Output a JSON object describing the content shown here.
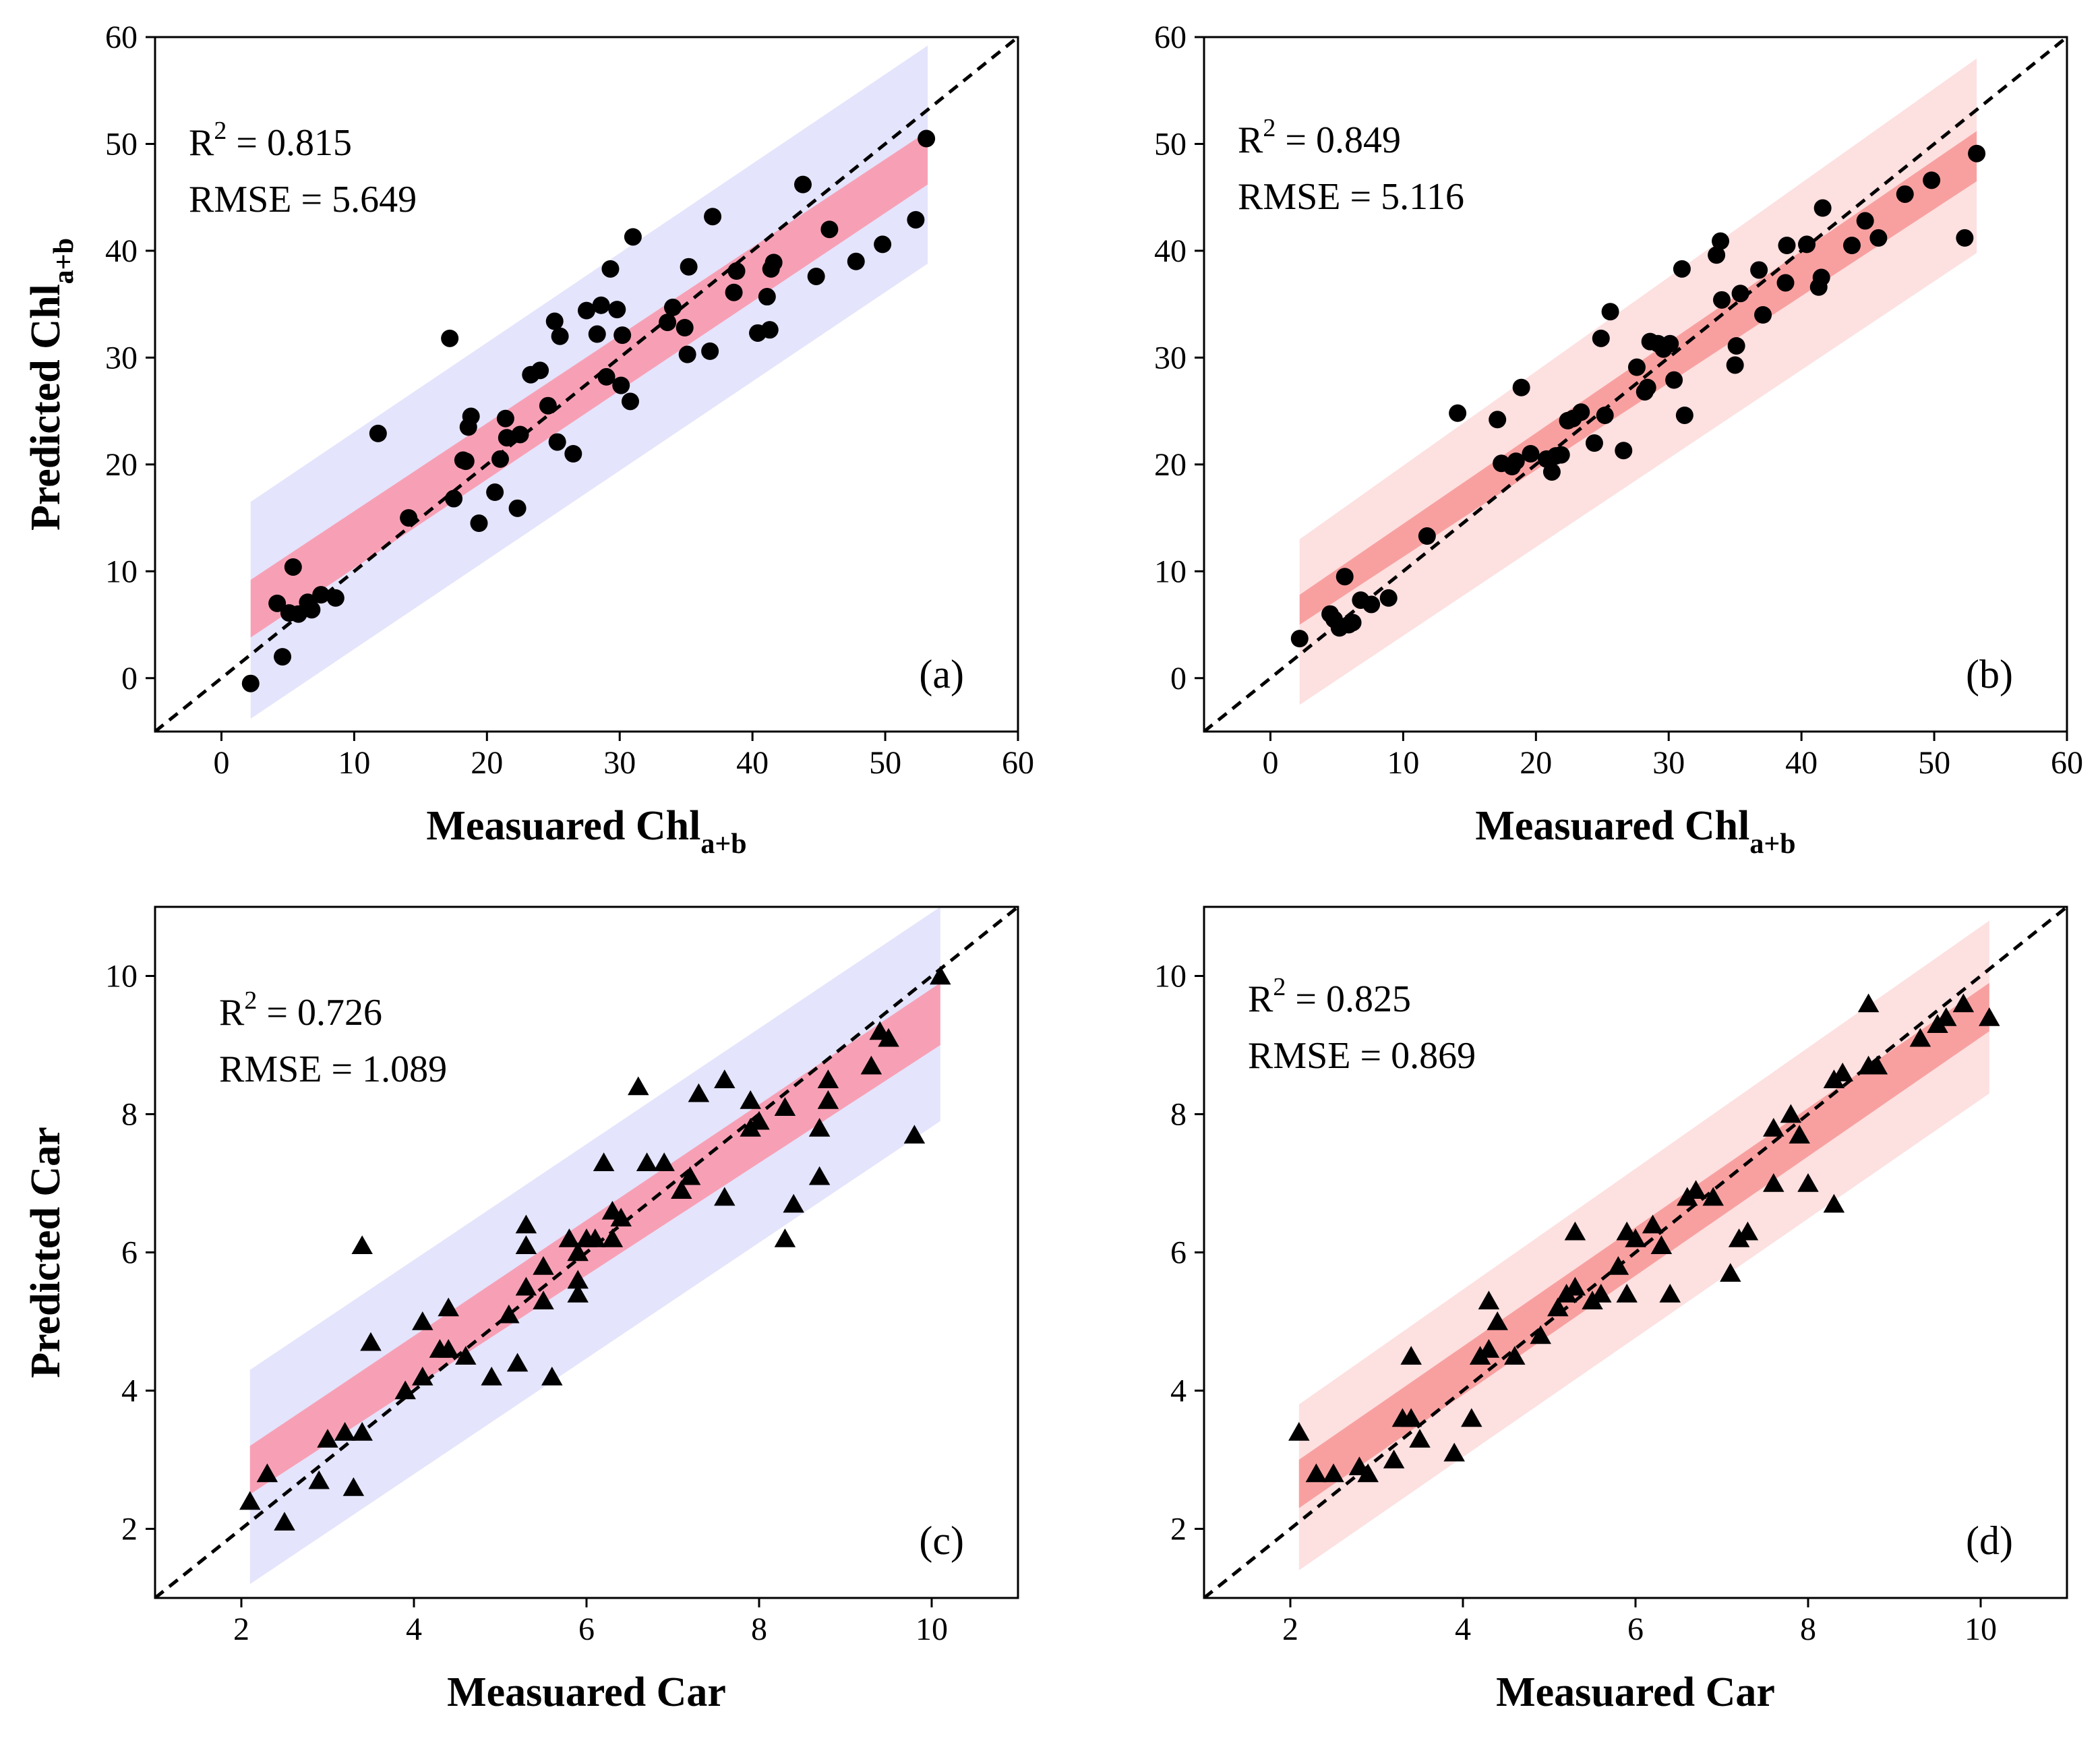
{
  "chart_data": [
    {
      "id": "a",
      "type": "scatter",
      "panel_label": "(a)",
      "xlabel": "Measuared Chl",
      "xlabel_sub": "a+b",
      "ylabel": "Predicted Chl",
      "ylabel_sub": "a+b",
      "xlim": [
        -5,
        60
      ],
      "ylim": [
        -5,
        60
      ],
      "xticks": [
        0,
        10,
        20,
        30,
        40,
        50,
        60
      ],
      "yticks": [
        0,
        10,
        20,
        30,
        40,
        50,
        60
      ],
      "r2_label": "R",
      "r2_sup": "2",
      "r2_value": " = 0.815",
      "rmse_text": "RMSE = 5.649",
      "marker": "circle",
      "colors": {
        "prediction_band": "#e4e4fc",
        "confidence_band": "#f7a0b5",
        "points": "#000000"
      },
      "fit": {
        "x_range": [
          2.2,
          53.2
        ],
        "conf_lower": [
          3.8,
          46.2
        ],
        "conf_upper": [
          9.2,
          51.2
        ],
        "pred_lower": [
          -3.8,
          38.8
        ],
        "pred_upper": [
          16.5,
          59.2
        ]
      },
      "x": [
        2.2,
        4.2,
        4.6,
        5.1,
        5.4,
        5.8,
        6.5,
        6.8,
        7.5,
        8.6,
        11.8,
        14.1,
        17.2,
        17.5,
        18.2,
        18.4,
        18.6,
        18.8,
        19.4,
        20.6,
        21.0,
        21.4,
        21.5,
        22.3,
        22.5,
        23.3,
        24.0,
        24.6,
        25.1,
        25.3,
        25.5,
        26.5,
        27.5,
        28.3,
        28.6,
        29.0,
        29.3,
        29.8,
        30.1,
        30.2,
        30.8,
        31.0,
        33.6,
        34.0,
        34.9,
        35.1,
        35.2,
        36.8,
        37.0,
        38.6,
        38.8,
        40.4,
        41.1,
        41.3,
        41.4,
        41.6,
        43.8,
        44.8,
        45.8,
        47.8,
        49.8,
        52.3,
        53.1
      ],
      "y": [
        -0.5,
        7.0,
        2.0,
        6.1,
        10.4,
        6.0,
        7.1,
        6.4,
        7.8,
        7.5,
        22.9,
        15.0,
        31.8,
        16.8,
        20.4,
        20.3,
        23.5,
        24.5,
        14.5,
        17.4,
        20.5,
        24.3,
        22.5,
        15.9,
        22.8,
        28.4,
        28.8,
        25.5,
        33.4,
        22.1,
        32.0,
        21.0,
        34.4,
        32.2,
        34.9,
        28.2,
        38.3,
        34.5,
        27.4,
        32.1,
        25.9,
        41.3,
        33.3,
        34.7,
        32.8,
        30.3,
        38.5,
        30.6,
        43.2,
        36.1,
        38.1,
        32.3,
        35.7,
        32.6,
        38.3,
        38.9,
        46.2,
        37.6,
        42.0,
        39.0,
        40.6,
        42.9,
        50.5
      ]
    },
    {
      "id": "b",
      "type": "scatter",
      "panel_label": "(b)",
      "xlabel": "Measuared Chl",
      "xlabel_sub": "a+b",
      "ylabel": "Predicted Chl",
      "ylabel_sub": "a+b",
      "xlim": [
        -5,
        60
      ],
      "ylim": [
        -5,
        60
      ],
      "xticks": [
        0,
        10,
        20,
        30,
        40,
        50,
        60
      ],
      "yticks": [
        0,
        10,
        20,
        30,
        40,
        50,
        60
      ],
      "r2_label": "R",
      "r2_sup": "2",
      "r2_value": " = 0.849",
      "rmse_text": "RMSE = 5.116",
      "marker": "circle",
      "colors": {
        "prediction_band": "#fde0e0",
        "confidence_band": "#f8a0a0",
        "points": "#000000"
      },
      "fit": {
        "x_range": [
          2.2,
          53.2
        ],
        "conf_lower": [
          5.0,
          46.5
        ],
        "conf_upper": [
          7.8,
          51.2
        ],
        "pred_lower": [
          -2.5,
          39.8
        ],
        "pred_upper": [
          13.0,
          58.0
        ]
      },
      "x": [
        2.2,
        4.5,
        4.8,
        5.2,
        5.6,
        5.9,
        6.2,
        6.8,
        7.6,
        8.9,
        11.8,
        14.1,
        17.1,
        17.4,
        18.2,
        18.5,
        18.9,
        19.6,
        20.8,
        21.2,
        21.5,
        21.9,
        22.4,
        22.8,
        23.4,
        24.4,
        24.9,
        25.2,
        25.6,
        26.6,
        27.6,
        28.2,
        28.4,
        28.6,
        29.2,
        29.6,
        30.1,
        30.4,
        31.0,
        31.2,
        33.6,
        33.9,
        34.0,
        35.0,
        35.1,
        35.4,
        36.8,
        37.1,
        38.8,
        38.9,
        40.4,
        41.3,
        41.5,
        41.6,
        43.8,
        44.8,
        45.8,
        47.8,
        49.8,
        52.3,
        53.2
      ],
      "y": [
        3.7,
        6.0,
        5.5,
        4.7,
        9.5,
        5.0,
        5.2,
        7.3,
        6.9,
        7.5,
        13.3,
        24.8,
        24.2,
        20.1,
        19.8,
        20.3,
        27.2,
        21.0,
        20.5,
        19.3,
        20.8,
        20.9,
        24.1,
        24.3,
        24.9,
        22.0,
        31.8,
        24.6,
        34.3,
        21.3,
        29.1,
        26.8,
        27.2,
        31.5,
        31.3,
        30.8,
        31.3,
        27.9,
        38.3,
        24.6,
        39.6,
        40.9,
        35.4,
        29.3,
        31.1,
        36.0,
        38.2,
        34.0,
        37.0,
        40.5,
        40.6,
        36.6,
        37.5,
        44.0,
        40.5,
        42.8,
        41.2,
        45.3,
        46.6,
        41.2,
        49.1
      ]
    },
    {
      "id": "c",
      "type": "scatter",
      "panel_label": "(c)",
      "xlabel": "Measuared Car",
      "xlabel_sub": "",
      "ylabel": "Predicted Car",
      "ylabel_sub": "",
      "xlim": [
        1,
        11
      ],
      "ylim": [
        1,
        11
      ],
      "xticks": [
        2,
        4,
        6,
        8,
        10
      ],
      "yticks": [
        2,
        4,
        6,
        8,
        10
      ],
      "r2_label": "R",
      "r2_sup": "2",
      "r2_value": " = 0.726",
      "rmse_text": "RMSE = 1.089",
      "marker": "triangle",
      "colors": {
        "prediction_band": "#e4e4fc",
        "confidence_band": "#f7a0b5",
        "points": "#000000"
      },
      "fit": {
        "x_range": [
          2.1,
          10.1
        ],
        "conf_lower": [
          2.5,
          9.0
        ],
        "conf_upper": [
          3.2,
          9.9
        ],
        "pred_lower": [
          1.2,
          7.9
        ],
        "pred_upper": [
          4.3,
          11.0
        ]
      },
      "x": [
        2.1,
        2.3,
        2.5,
        2.9,
        3.0,
        3.2,
        3.3,
        3.4,
        3.4,
        3.5,
        3.9,
        4.1,
        4.1,
        4.3,
        4.4,
        4.4,
        4.6,
        4.9,
        5.1,
        5.2,
        5.3,
        5.3,
        5.3,
        5.5,
        5.5,
        5.6,
        5.8,
        5.9,
        5.9,
        5.9,
        6.0,
        6.1,
        6.2,
        6.3,
        6.3,
        6.4,
        6.6,
        6.7,
        6.9,
        7.1,
        7.2,
        7.3,
        7.6,
        7.6,
        7.9,
        7.9,
        8.0,
        8.3,
        8.3,
        8.4,
        8.7,
        8.7,
        8.8,
        8.8,
        9.3,
        9.4,
        9.5,
        9.8,
        10.1
      ],
      "y": [
        2.4,
        2.8,
        2.1,
        2.7,
        3.3,
        3.4,
        2.6,
        6.1,
        3.4,
        4.7,
        4.0,
        4.2,
        5.0,
        4.6,
        5.2,
        4.6,
        4.5,
        4.2,
        5.1,
        4.4,
        5.5,
        6.4,
        6.1,
        5.3,
        5.8,
        4.2,
        6.2,
        5.4,
        5.6,
        6.0,
        6.2,
        6.2,
        7.3,
        6.6,
        6.2,
        6.5,
        8.4,
        7.3,
        7.3,
        6.9,
        7.1,
        8.3,
        6.8,
        8.5,
        8.2,
        7.8,
        7.9,
        6.2,
        8.1,
        6.7,
        7.8,
        7.1,
        8.2,
        8.5,
        8.7,
        9.2,
        9.1,
        7.7,
        10.0
      ]
    },
    {
      "id": "d",
      "type": "scatter",
      "panel_label": "(d)",
      "xlabel": "Measuared Car",
      "xlabel_sub": "",
      "ylabel": "Predicted Car",
      "ylabel_sub": "",
      "xlim": [
        1,
        11
      ],
      "ylim": [
        1,
        11
      ],
      "xticks": [
        2,
        4,
        6,
        8,
        10
      ],
      "yticks": [
        2,
        4,
        6,
        8,
        10
      ],
      "r2_label": "R",
      "r2_sup": "2",
      "r2_value": " = 0.825",
      "rmse_text": "RMSE = 0.869",
      "marker": "triangle",
      "colors": {
        "prediction_band": "#fde0e0",
        "confidence_band": "#f8a0a0",
        "points": "#000000"
      },
      "fit": {
        "x_range": [
          2.1,
          10.1
        ],
        "conf_lower": [
          2.3,
          9.2
        ],
        "conf_upper": [
          3.0,
          9.9
        ],
        "pred_lower": [
          1.4,
          8.3
        ],
        "pred_upper": [
          3.8,
          10.8
        ]
      },
      "x": [
        2.1,
        2.3,
        2.5,
        2.8,
        2.9,
        3.2,
        3.3,
        3.4,
        3.4,
        3.5,
        3.9,
        4.1,
        4.2,
        4.3,
        4.3,
        4.4,
        4.6,
        4.9,
        5.1,
        5.2,
        5.3,
        5.3,
        5.5,
        5.6,
        5.8,
        5.9,
        5.9,
        6.0,
        6.2,
        6.3,
        6.4,
        6.6,
        6.7,
        6.9,
        7.1,
        7.2,
        7.3,
        7.6,
        7.6,
        7.8,
        7.9,
        8.0,
        8.3,
        8.3,
        8.4,
        8.7,
        8.7,
        8.8,
        9.3,
        9.5,
        9.6,
        9.8,
        10.1
      ],
      "y": [
        3.4,
        2.8,
        2.8,
        2.9,
        2.8,
        3.0,
        3.6,
        4.5,
        3.6,
        3.3,
        3.1,
        3.6,
        4.5,
        4.6,
        5.3,
        5.0,
        4.5,
        4.8,
        5.2,
        5.4,
        6.3,
        5.5,
        5.3,
        5.4,
        5.8,
        6.3,
        5.4,
        6.2,
        6.4,
        6.1,
        5.4,
        6.8,
        6.9,
        6.8,
        5.7,
        6.2,
        6.3,
        7.0,
        7.8,
        8.0,
        7.7,
        7.0,
        6.7,
        8.5,
        8.6,
        9.6,
        8.7,
        8.7,
        9.1,
        9.3,
        9.4,
        9.6,
        9.4
      ]
    }
  ]
}
